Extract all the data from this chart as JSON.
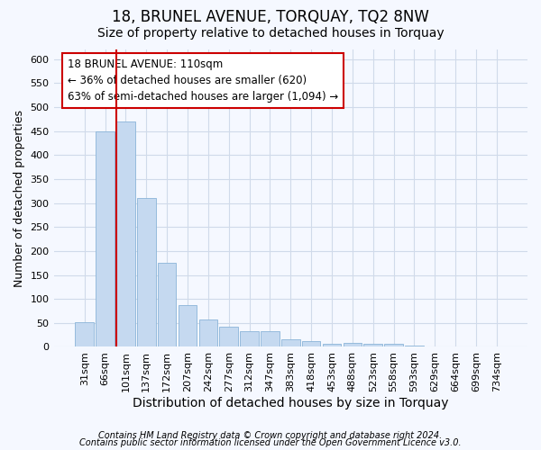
{
  "title": "18, BRUNEL AVENUE, TORQUAY, TQ2 8NW",
  "subtitle": "Size of property relative to detached houses in Torquay",
  "xlabel": "Distribution of detached houses by size in Torquay",
  "ylabel": "Number of detached properties",
  "bar_labels": [
    "31sqm",
    "66sqm",
    "101sqm",
    "137sqm",
    "172sqm",
    "207sqm",
    "242sqm",
    "277sqm",
    "312sqm",
    "347sqm",
    "383sqm",
    "418sqm",
    "453sqm",
    "488sqm",
    "523sqm",
    "558sqm",
    "593sqm",
    "629sqm",
    "664sqm",
    "699sqm",
    "734sqm"
  ],
  "bar_values": [
    52,
    450,
    470,
    310,
    175,
    88,
    57,
    42,
    32,
    32,
    15,
    13,
    7,
    8,
    7,
    7,
    2,
    1,
    1,
    1,
    1
  ],
  "bar_color": "#c5d9f0",
  "bar_edge_color": "#8ab4d8",
  "background_color": "#f5f8ff",
  "grid_color": "#d0daea",
  "red_line_color": "#cc0000",
  "red_line_bar_index": 2,
  "annotation_text": "18 BRUNEL AVENUE: 110sqm\n← 36% of detached houses are smaller (620)\n63% of semi-detached houses are larger (1,094) →",
  "annotation_box_color": "#ffffff",
  "annotation_box_edge": "#cc0000",
  "ylim": [
    0,
    620
  ],
  "yticks": [
    0,
    50,
    100,
    150,
    200,
    250,
    300,
    350,
    400,
    450,
    500,
    550,
    600
  ],
  "footnote1": "Contains HM Land Registry data © Crown copyright and database right 2024.",
  "footnote2": "Contains public sector information licensed under the Open Government Licence v3.0.",
  "title_fontsize": 12,
  "subtitle_fontsize": 10,
  "xlabel_fontsize": 10,
  "ylabel_fontsize": 9,
  "tick_fontsize": 8,
  "annot_fontsize": 8.5,
  "footnote_fontsize": 7
}
